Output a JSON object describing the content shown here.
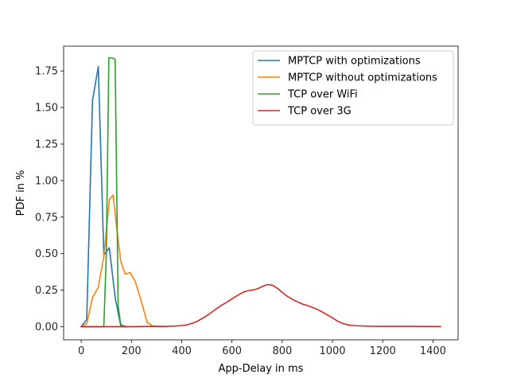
{
  "chart_data": {
    "type": "line",
    "title": "",
    "xlabel": "App-Delay in ms",
    "ylabel": "PDF in %",
    "xlim": [
      -70,
      1500
    ],
    "ylim": [
      -0.09,
      1.92
    ],
    "xticks": [
      0,
      200,
      400,
      600,
      800,
      1000,
      1200,
      1400
    ],
    "yticks": [
      0.0,
      0.25,
      0.5,
      0.75,
      1.0,
      1.25,
      1.5,
      1.75
    ],
    "xtick_labels": [
      "0",
      "200",
      "400",
      "600",
      "800",
      "1000",
      "1200",
      "1400"
    ],
    "ytick_labels": [
      "0.00",
      "0.25",
      "0.50",
      "0.75",
      "1.00",
      "1.25",
      "1.50",
      "1.75"
    ],
    "grid": false,
    "legend_position": "top-right",
    "series": [
      {
        "name": "MPTCP with optimizations",
        "color": "#1f77b4",
        "x": [
          0,
          22,
          45,
          68,
          90,
          112,
          135,
          157,
          180
        ],
        "y": [
          0.0,
          0.05,
          1.55,
          1.78,
          0.49,
          0.54,
          0.2,
          0.01,
          0.0
        ]
      },
      {
        "name": "MPTCP without optimizations",
        "color": "#ff7f0e",
        "x": [
          0,
          22,
          45,
          68,
          90,
          112,
          127,
          140,
          157,
          175,
          195,
          215,
          240,
          262,
          285,
          310,
          340
        ],
        "y": [
          0.0,
          0.02,
          0.2,
          0.27,
          0.48,
          0.87,
          0.9,
          0.7,
          0.45,
          0.36,
          0.37,
          0.31,
          0.17,
          0.03,
          0.005,
          0.0,
          0.0
        ]
      },
      {
        "name": "TCP over WiFi",
        "color": "#2ca02c",
        "x": [
          0,
          80,
          90,
          100,
          110,
          122,
          135,
          147,
          157,
          168,
          180
        ],
        "y": [
          0.0,
          0.0,
          0.0,
          0.5,
          1.84,
          1.84,
          1.83,
          0.14,
          0.02,
          0.0,
          0.0
        ]
      },
      {
        "name": "TCP over 3G",
        "color": "#d62728",
        "x": [
          0,
          200,
          300,
          350,
          380,
          400,
          420,
          440,
          460,
          480,
          500,
          520,
          540,
          560,
          580,
          600,
          620,
          640,
          660,
          680,
          700,
          720,
          740,
          760,
          780,
          800,
          820,
          840,
          860,
          880,
          900,
          920,
          940,
          960,
          980,
          1000,
          1020,
          1040,
          1060,
          1080,
          1100,
          1150,
          1200,
          1300,
          1430
        ],
        "y": [
          0.0,
          0.0,
          0.002,
          0.003,
          0.005,
          0.008,
          0.012,
          0.022,
          0.035,
          0.055,
          0.075,
          0.1,
          0.125,
          0.148,
          0.168,
          0.19,
          0.212,
          0.232,
          0.245,
          0.25,
          0.258,
          0.275,
          0.288,
          0.285,
          0.264,
          0.235,
          0.208,
          0.188,
          0.17,
          0.155,
          0.145,
          0.132,
          0.118,
          0.1,
          0.08,
          0.06,
          0.038,
          0.022,
          0.013,
          0.008,
          0.006,
          0.003,
          0.002,
          0.002,
          0.001
        ]
      }
    ]
  }
}
